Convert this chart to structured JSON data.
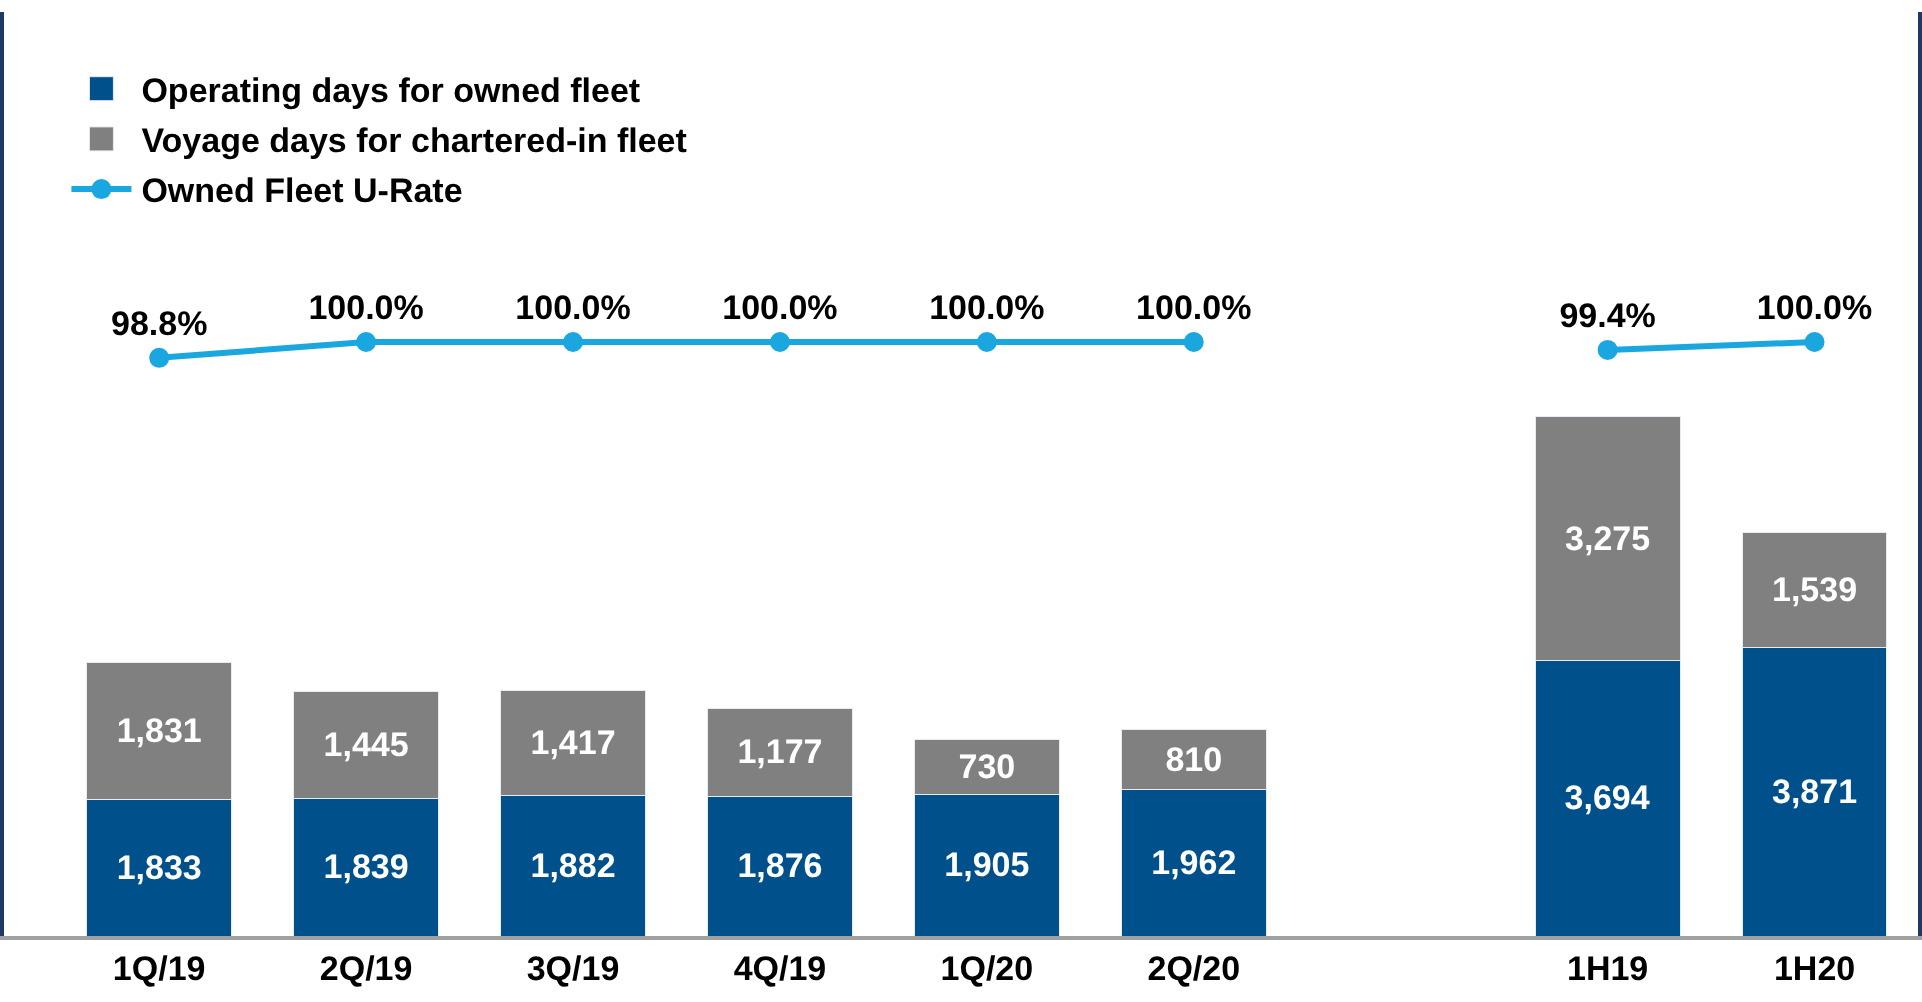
{
  "chart_data": {
    "type": "bar",
    "stacked": true,
    "categories": [
      "1Q/19",
      "2Q/19",
      "3Q/19",
      "4Q/19",
      "1Q/20",
      "2Q/20",
      null,
      "1H19",
      "1H20"
    ],
    "series": [
      {
        "name": "Operating days for owned fleet",
        "color": "#00508c",
        "values": [
          1833,
          1839,
          1882,
          1876,
          1905,
          1962,
          null,
          3694,
          3871
        ],
        "value_labels": [
          "1,833",
          "1,839",
          "1,882",
          "1,876",
          "1,905",
          "1,962",
          null,
          "3,694",
          "3,871"
        ]
      },
      {
        "name": "Voyage days for chartered-in fleet",
        "color": "#808080",
        "values": [
          1831,
          1445,
          1417,
          1177,
          730,
          810,
          null,
          3275,
          1539
        ],
        "value_labels": [
          "1,831",
          "1,445",
          "1,417",
          "1,177",
          "730",
          "810",
          null,
          "3,275",
          "1,539"
        ]
      },
      {
        "name": "Owned Fleet U-Rate",
        "type": "line",
        "axis": "y2",
        "color": "#1aa7e0",
        "marker": "circle",
        "values": [
          98.8,
          100.0,
          100.0,
          100.0,
          100.0,
          100.0,
          null,
          99.4,
          100.0
        ],
        "value_labels": [
          "98.8%",
          "100.0%",
          "100.0%",
          "100.0%",
          "100.0%",
          "100.0%",
          null,
          "99.4%",
          "100.0%"
        ]
      }
    ],
    "ylim": [
      0,
      12400
    ],
    "y2lim": [
      55,
      125
    ],
    "tick_labels": "x",
    "legend": "top left"
  }
}
